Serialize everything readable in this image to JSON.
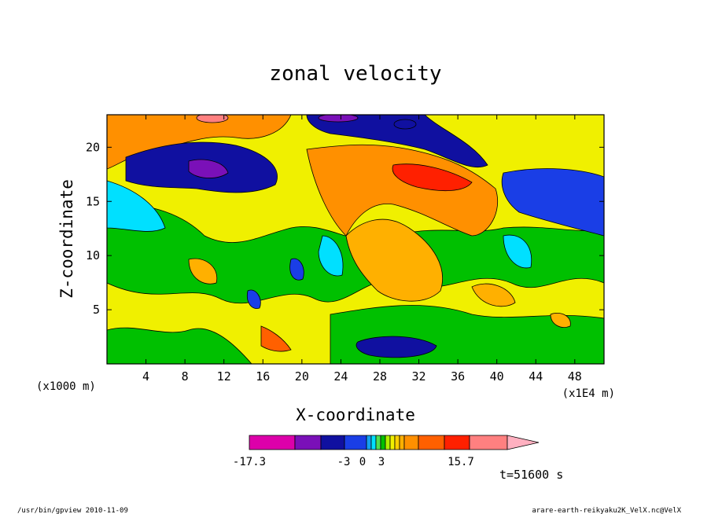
{
  "chart_data": {
    "type": "heatmap",
    "title": "zonal velocity",
    "xlabel": "X-coordinate",
    "ylabel": "Z-coordinate",
    "x_unit_left": "(x1000 m)",
    "x_unit_right": "(x1E4 m)",
    "xlim": [
      0,
      51
    ],
    "ylim": [
      0,
      23
    ],
    "x_ticks": [
      "4",
      "8",
      "12",
      "16",
      "20",
      "24",
      "28",
      "32",
      "36",
      "40",
      "44",
      "48"
    ],
    "y_ticks": [
      "5",
      "10",
      "15",
      "20"
    ],
    "colorbar": {
      "min_label": "-17.3",
      "max_label": "15.7",
      "labels": [
        "-3",
        "0",
        "3"
      ],
      "colors": [
        "#dd00aa",
        "#7a10b8",
        "#1010a0",
        "#1a3ee6",
        "#14a0f0",
        "#00e0ff",
        "#50e050",
        "#00c000",
        "#b0f000",
        "#f0f000",
        "#ffd000",
        "#ffb000",
        "#ff9000",
        "#ff6000",
        "#ff2000",
        "#ff8080",
        "#ffb0c0"
      ]
    },
    "time_label": "t=51600 s"
  },
  "footer": {
    "left": "/usr/bin/gpview   2010-11-09",
    "right": "arare-earth-reikyaku2K_VelX.nc@VelX"
  }
}
